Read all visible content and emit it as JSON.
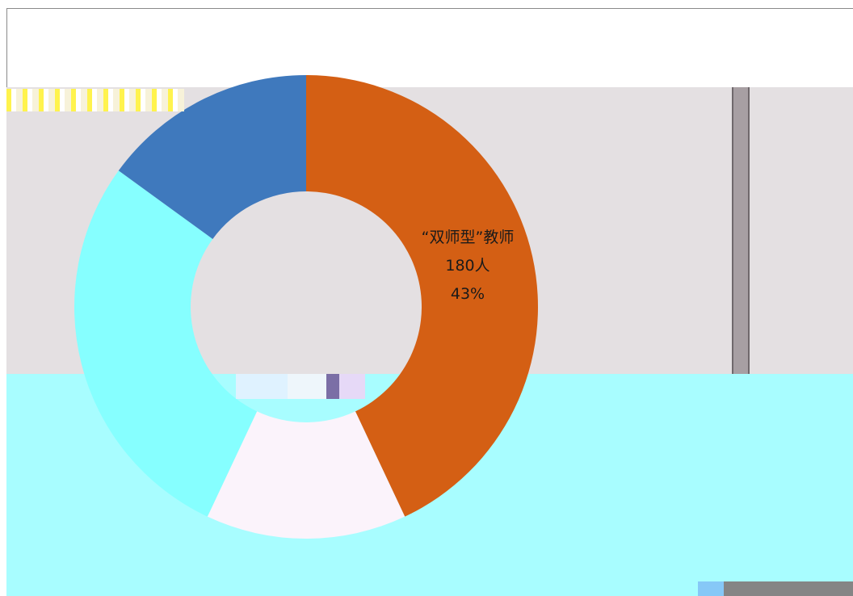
{
  "chart_data": {
    "type": "pie",
    "donut": true,
    "slices": [
      {
        "label": "“双师型”教师",
        "count": "180人",
        "percent": "43%",
        "value": 43,
        "color": "#d45f14"
      },
      {
        "label": "",
        "value": 14,
        "color": "#fbf3fb"
      },
      {
        "label": "",
        "value": 28,
        "color": "#86ffff"
      },
      {
        "label": "",
        "value": 15,
        "color": "#3f79bd"
      }
    ],
    "title": "",
    "legend": "none"
  },
  "colors": {
    "panel": "#e4e0e2",
    "band_bottom": "#a8fdff",
    "divider": "#a79fa3"
  }
}
